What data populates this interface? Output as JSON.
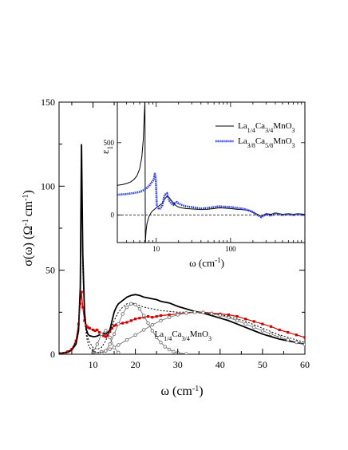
{
  "chart_data": [
    {
      "type": "line",
      "title": "",
      "xlabel": "ω (cm",
      "xlabel_sup": "-1",
      "xlabel_end": ")",
      "ylabel": "σ(ω) (Ω",
      "ylabel_sup1": "-1",
      "ylabel_mid": "cm",
      "ylabel_sup2": "-1",
      "ylabel_end": ")",
      "xlim": [
        2,
        60
      ],
      "ylim": [
        0,
        150
      ],
      "x_ticks": [
        "10",
        "20",
        "30",
        "40",
        "50",
        "60"
      ],
      "y_ticks": [
        "0",
        "50",
        "100",
        "150"
      ],
      "annotation": {
        "parts": [
          "La",
          "1/4",
          "Ca",
          "3/4",
          "MnO",
          "3"
        ],
        "x": 24.5,
        "y": 10.5
      },
      "series": [
        {
          "role": "data-x-one-quarter",
          "color": "#000000",
          "x": [
            2,
            4,
            5,
            6,
            6.6,
            7,
            7.3,
            7.6,
            8.0,
            8.4,
            8.8,
            9.2,
            10,
            10.5,
            11,
            11.5,
            12,
            12.5,
            13,
            13.5,
            14,
            14.5,
            15,
            15.5,
            16,
            17,
            18,
            19,
            20,
            21,
            22,
            23,
            24,
            25,
            26,
            27,
            28,
            30,
            32,
            34,
            36,
            38,
            40,
            42,
            44,
            46,
            48,
            50,
            52,
            54,
            56,
            58,
            60
          ],
          "y": [
            0.5,
            1,
            2.5,
            6,
            14,
            40,
            125,
            60,
            25,
            15,
            12,
            11,
            10.5,
            10.5,
            10.8,
            11.5,
            12,
            12.5,
            12,
            13,
            14.5,
            20,
            25,
            28,
            30,
            32,
            34,
            35,
            35.5,
            35,
            34,
            33.5,
            33,
            32.5,
            31.5,
            31,
            30.5,
            28.5,
            27,
            25.5,
            24.5,
            23,
            21.5,
            20,
            18,
            16,
            14,
            12,
            10.5,
            9,
            8,
            7,
            6
          ]
        },
        {
          "role": "data-x-three-eighths",
          "color": "#cc0000",
          "x": [
            2,
            4,
            5,
            6,
            6.6,
            7,
            7.3,
            7.6,
            8.0,
            8.4,
            8.8,
            9.2,
            10,
            10.5,
            11,
            11.5,
            12,
            12.5,
            13,
            13.5,
            14,
            14.5,
            15,
            15.5,
            16,
            17,
            18,
            19,
            20,
            21,
            22,
            23,
            24,
            25,
            26,
            28,
            30,
            32,
            34,
            36,
            38,
            40,
            42,
            44,
            46,
            48,
            50,
            52,
            54,
            56,
            58,
            60
          ],
          "y": [
            0.5,
            1.5,
            3,
            8,
            18,
            30,
            37,
            28,
            20,
            17,
            16,
            15.5,
            14.5,
            14,
            14.5,
            13,
            12,
            11,
            10.5,
            11.5,
            13.5,
            15.5,
            17,
            17.5,
            18,
            18.5,
            19,
            20,
            21,
            21.5,
            22,
            22.5,
            22,
            22.5,
            23,
            23.5,
            24,
            24.5,
            25,
            25,
            24.5,
            24,
            23.5,
            22.5,
            21,
            19.5,
            18,
            16.5,
            14.5,
            13,
            11.5,
            10
          ]
        },
        {
          "role": "fit-total",
          "color": "#000000",
          "style": "dotted",
          "x": [
            2,
            4,
            5,
            6,
            6.5,
            7,
            7.3,
            7.6,
            8,
            8.5,
            9,
            9.5,
            10,
            11,
            12,
            13,
            14,
            15,
            16,
            17,
            18,
            19,
            20,
            21,
            22,
            24,
            26,
            28,
            30,
            32,
            34,
            36,
            38,
            40,
            42,
            44,
            46,
            48,
            50,
            52,
            54,
            56,
            58,
            60
          ],
          "y": [
            0.5,
            1.5,
            3,
            8,
            14,
            40,
            110,
            55,
            25,
            12,
            8,
            6,
            4,
            3,
            4,
            8,
            14,
            20,
            25,
            28,
            30,
            30.5,
            30,
            29,
            28,
            27,
            26,
            25.5,
            25,
            25,
            24.8,
            24.5,
            24,
            23.5,
            22.5,
            21,
            19.5,
            17.5,
            15.5,
            13.5,
            11.5,
            10,
            8.5,
            7
          ]
        },
        {
          "role": "fit-broad-component",
          "color": "#666666",
          "style": "open-circles",
          "x": [
            10,
            12,
            14,
            16,
            18,
            20,
            22,
            24,
            26,
            28,
            30,
            32,
            34,
            36,
            38,
            40,
            42,
            44,
            46,
            48,
            50,
            52,
            54,
            56,
            58,
            60
          ],
          "y": [
            0.5,
            1.5,
            3,
            5.5,
            8.5,
            11.5,
            14.5,
            17.5,
            20,
            22,
            23.5,
            24.5,
            25,
            24.8,
            24.2,
            23.2,
            21.8,
            20,
            18,
            16,
            14,
            12,
            10.2,
            8.6,
            7.1,
            5.8
          ]
        },
        {
          "role": "fit-mid-component",
          "color": "#666666",
          "style": "open-circles",
          "x": [
            12,
            13,
            14,
            15,
            16,
            17,
            18,
            19,
            20,
            21,
            22,
            23,
            24,
            25,
            26,
            27,
            28,
            29,
            30,
            32
          ],
          "y": [
            0.5,
            2,
            6,
            12,
            18,
            24,
            28,
            30,
            29.5,
            27,
            23,
            18.5,
            14,
            10,
            7,
            4.5,
            2.8,
            1.5,
            0.8,
            0.2
          ]
        },
        {
          "role": "fit-narrow-component",
          "color": "#000000",
          "style": "dotted",
          "x": [
            2,
            4,
            5,
            6,
            6.5,
            7,
            7.3,
            7.6,
            8,
            8.5,
            9,
            9.5,
            10,
            11,
            12
          ],
          "y": [
            0.3,
            1,
            2.5,
            7,
            13,
            38,
            105,
            50,
            22,
            10,
            5,
            3,
            2,
            1,
            0.5
          ]
        },
        {
          "role": "fit-small-component",
          "color": "#666666",
          "style": "open-circles",
          "x": [
            10,
            11,
            12,
            13,
            14,
            15,
            16
          ],
          "y": [
            1,
            6,
            12,
            14,
            10,
            4,
            1
          ]
        }
      ]
    },
    {
      "type": "line",
      "title": "",
      "xscale": "log",
      "xlim": [
        3,
        1000
      ],
      "ylim": [
        -190,
        780
      ],
      "xlabel": "ω (cm",
      "xlabel_sup": "-1",
      "xlabel_end": ")",
      "ylabel": "ε",
      "ylabel_sub": "1",
      "x_ticks": [
        "10",
        "100"
      ],
      "y_ticks": [
        "0",
        "500"
      ],
      "legend": {
        "placement": "top-right",
        "entries": [
          {
            "parts": [
              "La",
              "1/4",
              "Ca",
              "3/4",
              "MnO",
              "3"
            ],
            "color": "#000000",
            "style": "solid"
          },
          {
            "parts": [
              "La",
              "3/8",
              "Ca",
              "5/8",
              "MnO",
              "3"
            ],
            "color": "#2233dd",
            "style": "dotted-thick"
          }
        ]
      },
      "series": [
        {
          "role": "eps-x-one-quarter",
          "color": "#000000",
          "x": [
            3,
            3.5,
            4,
            4.5,
            5,
            5.5,
            6,
            6.4,
            6.7,
            6.9,
            7.05,
            7.15,
            7.3,
            7.5,
            8,
            8.5,
            9,
            10,
            11,
            12,
            13,
            14,
            15,
            16,
            17,
            18,
            19,
            20,
            22,
            25,
            30,
            35,
            40,
            50,
            60,
            70,
            80,
            100,
            120,
            140,
            160,
            180,
            200,
            230,
            260,
            300,
            350,
            400,
            500,
            600,
            700,
            800,
            1000
          ],
          "y": [
            205,
            210,
            218,
            228,
            245,
            270,
            320,
            400,
            520,
            680,
            780,
            -190,
            -110,
            -60,
            -10,
            15,
            30,
            50,
            65,
            80,
            110,
            130,
            120,
            100,
            85,
            70,
            60,
            55,
            50,
            45,
            42,
            40,
            38,
            40,
            45,
            50,
            48,
            45,
            40,
            38,
            35,
            30,
            20,
            5,
            -10,
            10,
            5,
            15,
            5,
            10,
            5,
            10,
            5
          ]
        },
        {
          "role": "eps-x-three-eighths",
          "color": "#2233dd",
          "x": [
            3,
            4,
            5,
            6,
            7,
            8,
            8.5,
            9,
            9.3,
            9.6,
            9.9,
            10.2,
            10.5,
            11,
            12,
            13,
            14,
            15,
            16,
            17,
            18,
            19,
            20,
            22,
            25,
            30,
            35,
            40,
            50,
            60,
            70,
            80,
            100,
            120,
            140,
            160,
            180,
            200,
            230,
            260,
            300,
            350,
            400,
            500,
            600,
            700,
            800,
            1000
          ],
          "y": [
            140,
            145,
            152,
            160,
            175,
            200,
            220,
            235,
            250,
            290,
            240,
            60,
            50,
            40,
            60,
            140,
            150,
            100,
            80,
            70,
            85,
            90,
            80,
            70,
            60,
            55,
            50,
            45,
            50,
            55,
            60,
            58,
            55,
            50,
            45,
            40,
            30,
            20,
            0,
            -15,
            5,
            -5,
            10,
            0,
            5,
            0,
            5,
            0
          ]
        }
      ]
    }
  ]
}
